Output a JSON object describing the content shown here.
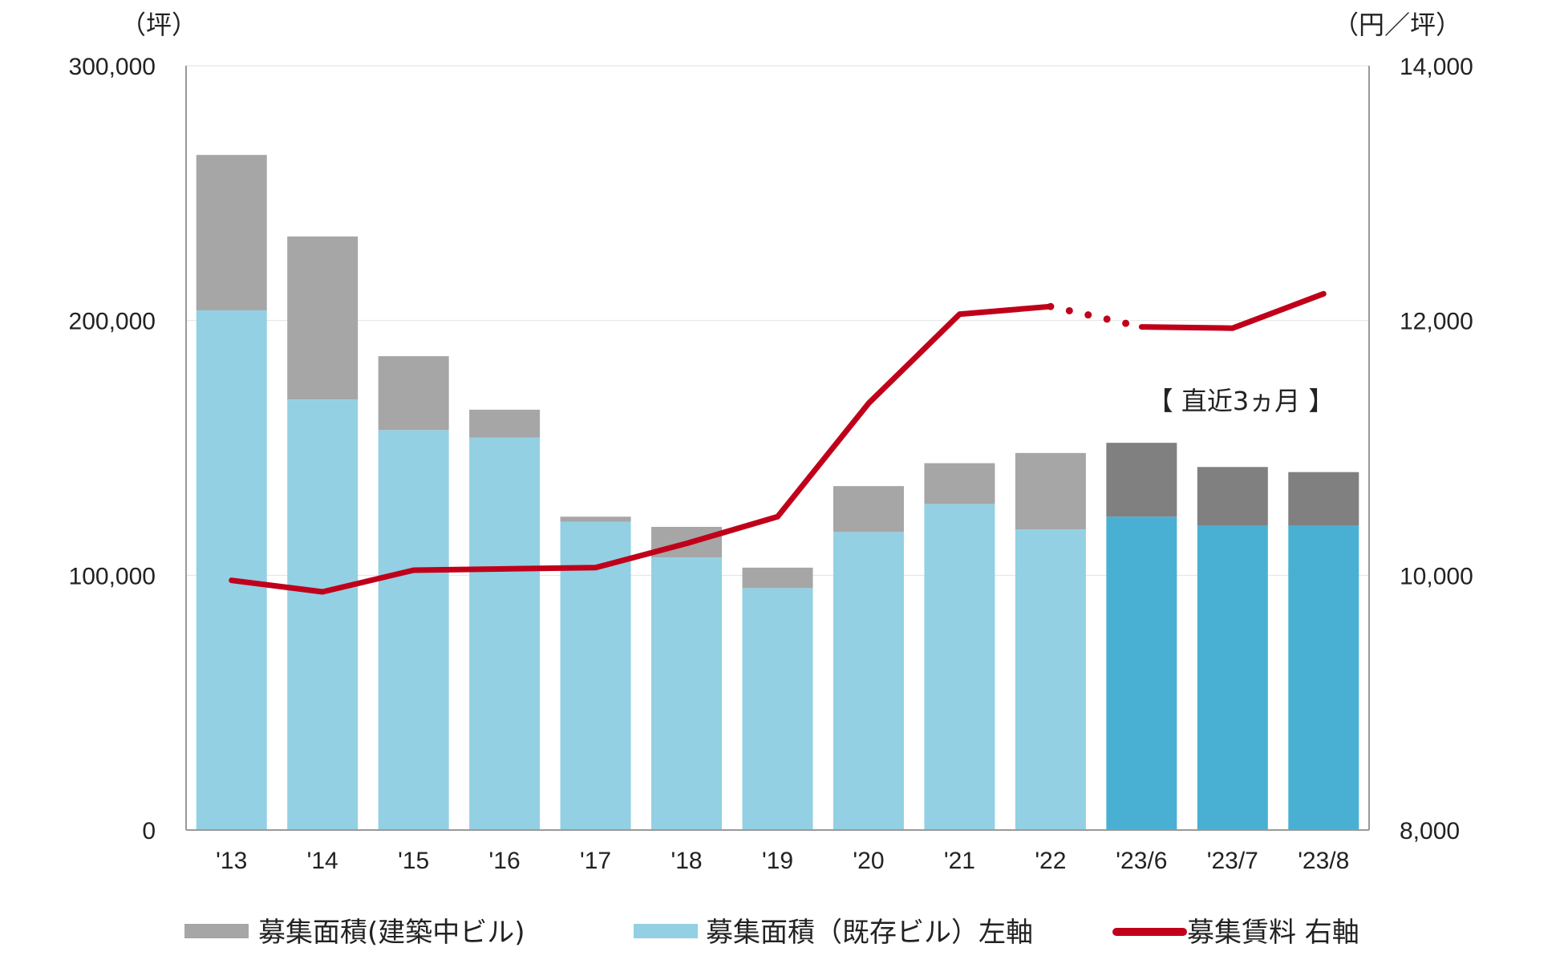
{
  "chart_data": {
    "type": "bar",
    "stacked": true,
    "categories": [
      "'13",
      "'14",
      "'15",
      "'16",
      "'17",
      "'18",
      "'19",
      "'20",
      "'21",
      "'22",
      "'23/6",
      "'23/7",
      "'23/8"
    ],
    "series": [
      {
        "name": "募集面積（既存ビル）左軸",
        "axis": "left",
        "role": "bar-bottom",
        "values": [
          204000,
          169000,
          157000,
          154000,
          121000,
          107000,
          95000,
          117000,
          128000,
          118000,
          123000,
          119500,
          119500
        ]
      },
      {
        "name": "募集面積（建築中ビル）",
        "axis": "left",
        "role": "bar-top",
        "values": [
          61000,
          64000,
          29000,
          11000,
          2000,
          12000,
          8000,
          18000,
          16000,
          30000,
          29000,
          23000,
          21000
        ]
      },
      {
        "name": "募集賃料 右軸",
        "axis": "right",
        "type": "line",
        "values": [
          9960,
          9870,
          10040,
          10050,
          10060,
          10250,
          10460,
          11350,
          12050,
          12110,
          11950,
          11940,
          12210
        ]
      }
    ],
    "left_axis": {
      "label": "（坪）",
      "range": [
        0,
        300000
      ],
      "ticks": [
        "0",
        "100,000",
        "200,000",
        "300,000"
      ],
      "tick_values": [
        0,
        100000,
        200000,
        300000
      ]
    },
    "right_axis": {
      "label": "（円／坪）",
      "range": [
        8000,
        14000
      ],
      "ticks": [
        "8,000",
        "10,000",
        "12,000",
        "14,000"
      ],
      "tick_values": [
        8000,
        10000,
        12000,
        14000
      ]
    },
    "annotation": "【 直近3ヵ月 】",
    "grid": true,
    "legend_position": "bottom",
    "recent_highlight_from_index": 10,
    "dotted_segment_between": [
      9,
      10
    ]
  },
  "colors": {
    "existing": "#93d0e3",
    "existing_recent": "#4ab0d3",
    "construction": "#a6a6a6",
    "construction_recent": "#808080",
    "rent_line": "#c0001a",
    "axis": "#999999",
    "grid": "#e2e2e2"
  },
  "legend": {
    "construction": "募集面積(建築中ビル)",
    "existing": "募集面積（既存ビル）左軸",
    "rent": "募集賃料 右軸"
  }
}
